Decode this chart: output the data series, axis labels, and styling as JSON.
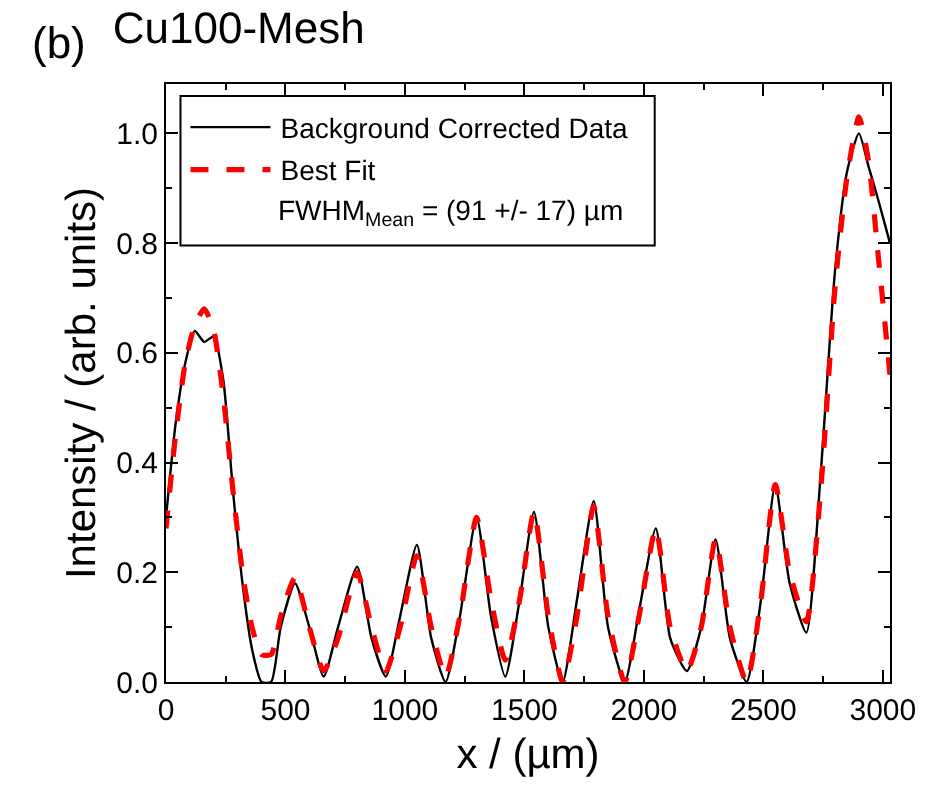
{
  "chart_data": {
    "type": "line",
    "title": "Cu100-Mesh",
    "xlabel": "x / (µm)",
    "ylabel": "Intensity / (arb. units)",
    "annotations": [
      "(b)",
      "FWHM$_{Mean}$ = (91 +/- 17) µm"
    ],
    "xlim": [
      0,
      3030
    ],
    "ylim": [
      0,
      1.09
    ],
    "xticks": [
      0,
      500,
      1000,
      1500,
      2000,
      2500,
      3000
    ],
    "yticks": [
      {
        "value": 0,
        "label": "0.0"
      },
      0.2,
      0.4,
      0.6,
      0.8,
      {
        "value": 1,
        "label": "1.0"
      }
    ],
    "legend": "top left",
    "series": [
      {
        "name": "Background Corrected Data",
        "color": "#000000",
        "line_style": "solid",
        "x": [
          0,
          40,
          80,
          120,
          160,
          200,
          240,
          280,
          320,
          360,
          400,
          440,
          480,
          540,
          600,
          660,
          720,
          800,
          860,
          920,
          980,
          1050,
          1110,
          1170,
          1230,
          1300,
          1360,
          1420,
          1480,
          1540,
          1600,
          1660,
          1720,
          1790,
          1850,
          1920,
          1980,
          2050,
          2110,
          2180,
          2240,
          2300,
          2360,
          2430,
          2490,
          2550,
          2610,
          2680,
          2740,
          2800,
          2850,
          2900,
          2940,
          2980,
          3030
        ],
        "values": [
          0.3,
          0.47,
          0.58,
          0.64,
          0.62,
          0.63,
          0.55,
          0.35,
          0.18,
          0.06,
          0.0,
          0.0,
          0.1,
          0.18,
          0.1,
          0.01,
          0.1,
          0.21,
          0.08,
          0.01,
          0.12,
          0.25,
          0.08,
          0.0,
          0.12,
          0.3,
          0.12,
          0.01,
          0.15,
          0.31,
          0.1,
          0.0,
          0.15,
          0.33,
          0.1,
          0.0,
          0.13,
          0.28,
          0.08,
          0.02,
          0.1,
          0.26,
          0.08,
          0.0,
          0.15,
          0.36,
          0.18,
          0.09,
          0.38,
          0.75,
          0.93,
          1.0,
          0.94,
          0.88,
          0.8
        ]
      },
      {
        "name": "Best Fit",
        "color": "#ff0000",
        "line_style": "dashed",
        "x": [
          0,
          40,
          80,
          120,
          160,
          200,
          240,
          280,
          320,
          360,
          400,
          440,
          480,
          540,
          600,
          660,
          720,
          800,
          860,
          920,
          980,
          1050,
          1110,
          1170,
          1230,
          1300,
          1360,
          1420,
          1480,
          1540,
          1600,
          1660,
          1720,
          1790,
          1850,
          1920,
          1980,
          2050,
          2110,
          2180,
          2240,
          2300,
          2360,
          2430,
          2490,
          2550,
          2610,
          2680,
          2740,
          2800,
          2850,
          2900,
          2940,
          2980,
          3030
        ],
        "values": [
          0.28,
          0.45,
          0.58,
          0.65,
          0.68,
          0.64,
          0.52,
          0.35,
          0.2,
          0.1,
          0.05,
          0.05,
          0.12,
          0.19,
          0.1,
          0.02,
          0.08,
          0.2,
          0.1,
          0.02,
          0.1,
          0.23,
          0.1,
          0.01,
          0.12,
          0.3,
          0.15,
          0.04,
          0.15,
          0.31,
          0.12,
          0.0,
          0.12,
          0.32,
          0.12,
          0.0,
          0.12,
          0.28,
          0.1,
          0.02,
          0.1,
          0.26,
          0.1,
          0.0,
          0.15,
          0.36,
          0.2,
          0.11,
          0.35,
          0.72,
          0.92,
          1.03,
          0.95,
          0.78,
          0.56
        ]
      }
    ]
  }
}
